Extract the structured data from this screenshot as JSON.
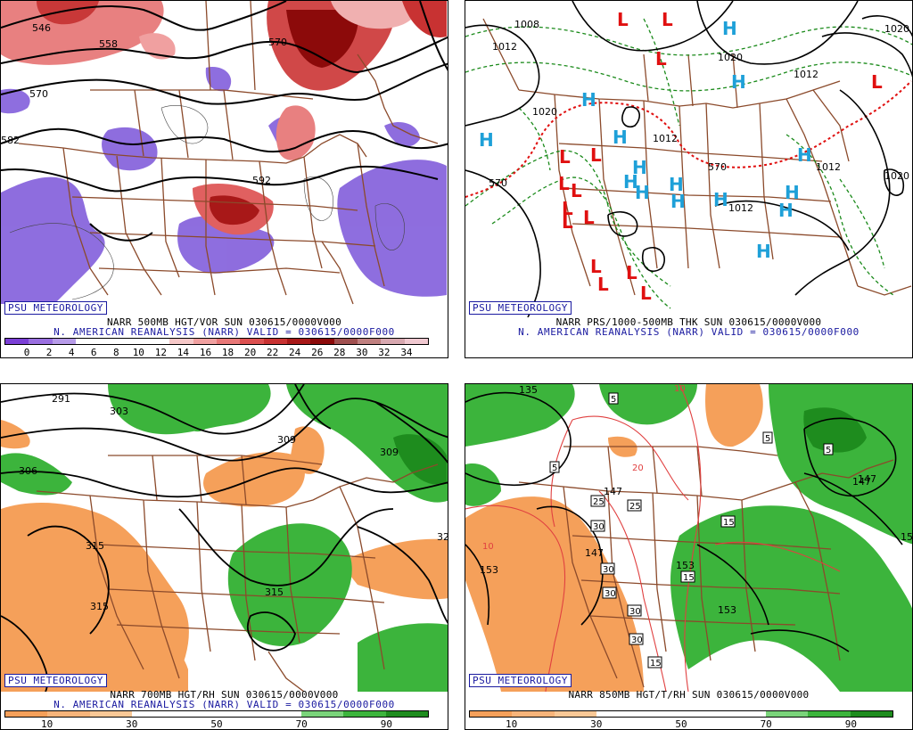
{
  "panels": {
    "p1": {
      "logo": "PSU METEOROLOGY",
      "title": "NARR 500MB HGT/VOR SUN 030615/0000V000",
      "subtitle": "N. AMERICAN REANALYSIS (NARR) VALID = 030615/0000F000",
      "contour_labels": [
        "546",
        "558",
        "570",
        "570",
        "582",
        "592"
      ],
      "colorbar_ticks": [
        "0",
        "2",
        "4",
        "6",
        "8",
        "10",
        "12",
        "14",
        "16",
        "18",
        "20",
        "22",
        "24",
        "26",
        "28",
        "30",
        "32",
        "34"
      ],
      "colorbar_colors": [
        "#7b3fd6",
        "#9a6fe0",
        "#b79be9",
        "#ffffff",
        "#ffffff",
        "#ffffff",
        "#ffffff",
        "#f6c8c8",
        "#f0a0a0",
        "#e87878",
        "#dc5050",
        "#c83232",
        "#a81818",
        "#8c0a0a",
        "#a05050",
        "#c08080",
        "#d8a8b0",
        "#f0c8d0"
      ]
    },
    "p2": {
      "logo": "PSU METEOROLOGY",
      "title": "NARR PRS/1000-500MB THK SUN 030615/0000V000",
      "subtitle": "N. AMERICAN REANALYSIS (NARR) VALID = 030615/0000F000",
      "isobar_labels": [
        "1008",
        "1012",
        "1020",
        "1012",
        "1012",
        "1012",
        "1020",
        "1012",
        "1020",
        "1020",
        "570",
        "570"
      ],
      "high_label": "H",
      "low_label": "L",
      "high_color": "#1ea0d8",
      "low_color": "#e01010"
    },
    "p3": {
      "logo": "PSU METEOROLOGY",
      "title": "NARR 700MB HGT/RH SUN 030615/0000V000",
      "subtitle": "N. AMERICAN REANALYSIS (NARR) VALID = 030615/0000F000",
      "contour_labels": [
        "291",
        "303",
        "309",
        "309",
        "306",
        "315",
        "315",
        "315",
        "32"
      ],
      "colorbar_ticks": [
        "10",
        "30",
        "50",
        "70",
        "90"
      ],
      "colorbar_colors": [
        "#f5a05a",
        "#f7b47a",
        "#f9c896",
        "#ffffff",
        "#ffffff",
        "#ffffff",
        "#ffffff",
        "#7ad37a",
        "#3cb43c",
        "#1e8c1e"
      ]
    },
    "p4": {
      "logo": "PSU METEOROLOGY",
      "title": "NARR 850MB HGT/T/RH SUN 030615/0000V000",
      "contour_labels": [
        "135",
        "147",
        "147",
        "147",
        "153",
        "153",
        "153",
        "147",
        "15"
      ],
      "temp_box_labels": [
        "5",
        "5",
        "5",
        "5",
        "10",
        "10",
        "20",
        "25",
        "25",
        "30",
        "30",
        "30",
        "30",
        "30",
        "15",
        "15",
        "15"
      ],
      "colorbar_ticks": [
        "10",
        "30",
        "50",
        "70",
        "90"
      ],
      "colorbar_colors": [
        "#f5a05a",
        "#f7b47a",
        "#f9c896",
        "#ffffff",
        "#ffffff",
        "#ffffff",
        "#ffffff",
        "#7ad37a",
        "#3cb43c",
        "#1e8c1e"
      ]
    }
  }
}
